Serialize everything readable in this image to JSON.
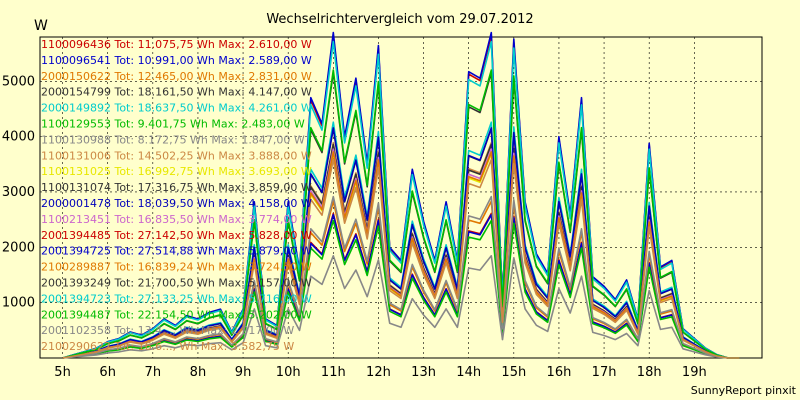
{
  "chart_data": {
    "type": "line",
    "title": "Wechselrichtervergleich vom 29.07.2012",
    "ylabel": "W",
    "xlabel": "",
    "credit": "SunnyReport pinxit",
    "ylim": [
      0,
      5800
    ],
    "y_ticks": [
      1000,
      2000,
      3000,
      4000,
      5000
    ],
    "x_tick_labels": [
      "5h",
      "6h",
      "7h",
      "8h",
      "9h",
      "10h",
      "11h",
      "12h",
      "13h",
      "14h",
      "15h",
      "16h",
      "17h",
      "18h",
      "19h"
    ],
    "x_range": [
      4.5,
      20.5
    ],
    "grid": true,
    "legend_position": "top-left",
    "x": [
      5.0,
      5.25,
      5.5,
      5.75,
      6.0,
      6.25,
      6.5,
      6.75,
      7.0,
      7.25,
      7.5,
      7.75,
      8.0,
      8.25,
      8.5,
      8.75,
      9.0,
      9.25,
      9.5,
      9.75,
      10.0,
      10.25,
      10.5,
      10.75,
      11.0,
      11.25,
      11.5,
      11.75,
      12.0,
      12.25,
      12.5,
      12.75,
      13.0,
      13.25,
      13.5,
      13.75,
      14.0,
      14.25,
      14.5,
      14.75,
      15.0,
      15.25,
      15.5,
      15.75,
      16.0,
      16.25,
      16.5,
      16.75,
      17.0,
      17.25,
      17.5,
      17.75,
      18.0,
      18.25,
      18.5,
      18.75,
      19.0,
      19.25,
      19.5,
      19.75,
      20.0
    ],
    "profile": [
      0,
      0.01,
      0.02,
      0.03,
      0.05,
      0.06,
      0.08,
      0.07,
      0.09,
      0.12,
      0.1,
      0.13,
      0.12,
      0.14,
      0.15,
      0.08,
      0.15,
      0.48,
      0.12,
      0.1,
      0.48,
      0.27,
      0.8,
      0.72,
      1.0,
      0.68,
      0.86,
      0.6,
      0.96,
      0.34,
      0.3,
      0.58,
      0.42,
      0.3,
      0.48,
      0.3,
      0.88,
      0.86,
      1.0,
      0.18,
      0.98,
      0.48,
      0.32,
      0.26,
      0.68,
      0.44,
      0.8,
      0.25,
      0.22,
      0.18,
      0.24,
      0.12,
      0.66,
      0.28,
      0.3,
      0.09,
      0.06,
      0.03,
      0.01,
      0.0,
      0.0
    ],
    "series": [
      {
        "label": "1100096436 Tot: 11.075,75 Wh Max: 2.610,00 W",
        "color": "#cc0000",
        "peak": 2610
      },
      {
        "label": "1100096541 Tot: 10.991,00 Wh Max: 2.589,00 W",
        "color": "#0000cc",
        "peak": 2589
      },
      {
        "label": "2000150622 Tot: 12.465,00 Wh Max: 2.831,00 W",
        "color": "#e07800",
        "peak": 2831
      },
      {
        "label": "2000154799 Tot: 18.161,50 Wh Max: 4.147,00 W",
        "color": "#333333",
        "peak": 4147
      },
      {
        "label": "2000149892 Tot: 18.637,50 Wh Max: 4.261,00 W",
        "color": "#00cccc",
        "peak": 4261
      },
      {
        "label": "1100129553 Tot: 9.401,75 Wh Max: 2.483,00 W",
        "color": "#00bb00",
        "peak": 2483
      },
      {
        "label": "1100130988 Tot: 8.172,75 Wh Max: 1.847,00 W",
        "color": "#888888",
        "peak": 1847
      },
      {
        "label": "1100131006 Tot: 14.502,25 Wh Max: 3.888,00 W",
        "color": "#cc8844",
        "peak": 3888
      },
      {
        "label": "1100131025 Tot: 16.992,75 Wh Max: 3.693,00 W",
        "color": "#e8e800",
        "peak": 3693
      },
      {
        "label": "1100131074 Tot: 17.316,75 Wh Max: 3.859,00 W",
        "color": "#333333",
        "peak": 3859
      },
      {
        "label": "2000001478 Tot: 18.039,50 Wh Max: 4.158,00 W",
        "color": "#0000bb",
        "peak": 4158
      },
      {
        "label": "1100213451 Tot: 16.835,50 Wh Max: 3.774,00 W",
        "color": "#cc66cc",
        "peak": 3774
      },
      {
        "label": "2001394485 Tot: 27.142,50 Wh Max: 5.828,00 W",
        "color": "#cc0000",
        "peak": 5828
      },
      {
        "label": "2001394725 Tot: 27.514,88 Wh Max: 5.879,00 W",
        "color": "#0000cc",
        "peak": 5879
      },
      {
        "label": "2100289887 Tot: 16.839,24 Wh Max: 3.724,50 W",
        "color": "#e07800",
        "peak": 3724.5
      },
      {
        "label": "2001393249 Tot: 21.700,50 Wh Max: 5.157,00 W",
        "color": "#333333",
        "peak": 5157
      },
      {
        "label": "2001394723 Tot: 27.133,25 Wh Max: 5.716,00 W",
        "color": "#00cccc",
        "peak": 5716
      },
      {
        "label": "2001394487 Tot: 22.154,50 Wh Max: 5.202,00 W",
        "color": "#00bb00",
        "peak": 5202
      },
      {
        "label": "2001102358 Tot: 13.4..., Wh Max: 2.917,00 W",
        "color": "#888888",
        "peak": 2917
      },
      {
        "label": "2100290622 Tot: 16.6..., Wh Max: 3.582,75 W",
        "color": "#cc8844",
        "peak": 3582.75
      }
    ]
  }
}
